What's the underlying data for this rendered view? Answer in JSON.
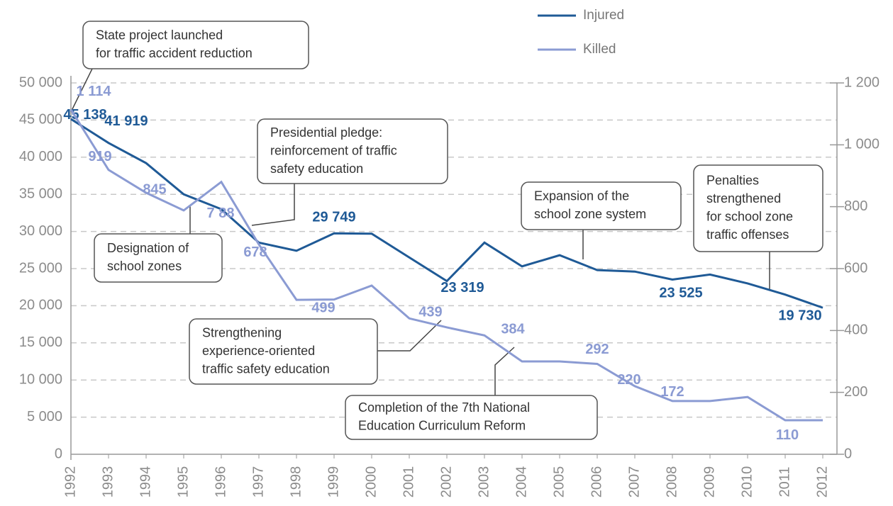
{
  "chart_data": {
    "type": "line",
    "x": [
      "1992",
      "1993",
      "1994",
      "1995",
      "1996",
      "1997",
      "1998",
      "1999",
      "2000",
      "2001",
      "2002",
      "2003",
      "2004",
      "2005",
      "2006",
      "2007",
      "2008",
      "2009",
      "2010",
      "2011",
      "2012"
    ],
    "series": [
      {
        "name": "Injured",
        "color": "#1f5a96",
        "axis": "y",
        "values": [
          45138,
          41919,
          39200,
          35000,
          33000,
          28500,
          27400,
          29749,
          29700,
          26500,
          23319,
          28500,
          25300,
          26800,
          24800,
          24600,
          23525,
          24200,
          23000,
          21500,
          19730
        ],
        "value_labels": [
          "45 138",
          "41 919",
          null,
          null,
          null,
          null,
          null,
          "29 749",
          null,
          null,
          "23 319",
          null,
          null,
          null,
          null,
          null,
          "23 525",
          null,
          null,
          null,
          "19 730"
        ]
      },
      {
        "name": "Killed",
        "color": "#8b9bd3",
        "axis": "y2",
        "values": [
          1114,
          919,
          845,
          788,
          880,
          678,
          499,
          500,
          545,
          439,
          410,
          384,
          300,
          300,
          292,
          220,
          172,
          172,
          185,
          110,
          110
        ],
        "value_labels": [
          "1 114",
          "919",
          "845",
          "7 88",
          null,
          "678",
          "499",
          null,
          null,
          "439",
          null,
          "384",
          null,
          null,
          "292",
          "220",
          "172",
          null,
          null,
          "110",
          null
        ]
      }
    ],
    "ylim": [
      0,
      50000
    ],
    "yticks": [
      0,
      {
        "value": 5000,
        "label": "5 000"
      },
      {
        "value": 10000,
        "label": "10 000"
      },
      {
        "value": 15000,
        "label": "15 000"
      },
      {
        "value": 20000,
        "label": "20 000"
      },
      {
        "value": 25000,
        "label": "25 000"
      },
      {
        "value": 30000,
        "label": "30 000"
      },
      {
        "value": 35000,
        "label": "35 000"
      },
      {
        "value": 40000,
        "label": "40 000"
      },
      {
        "value": 45000,
        "label": "45 000"
      },
      {
        "value": 50000,
        "label": "50 000"
      }
    ],
    "y2lim": [
      0,
      1200
    ],
    "y2ticks": [
      0,
      200,
      400,
      600,
      800,
      {
        "value": 1000,
        "label": "1 000"
      },
      {
        "value": 1200,
        "label": "1 200"
      }
    ],
    "grid": true,
    "legend": "top",
    "annotations": [
      {
        "lines": [
          "State project launched",
          "for traffic accident reduction"
        ]
      },
      {
        "lines": [
          "Presidential pledge:",
          "reinforcement of traffic",
          "safety education"
        ]
      },
      {
        "lines": [
          "Designation of",
          "school zones"
        ]
      },
      {
        "lines": [
          "Expansion of the",
          "school zone system"
        ]
      },
      {
        "lines": [
          "Penalties",
          "strengthened",
          "for school zone",
          "traffic offenses"
        ]
      },
      {
        "lines": [
          "Strengthening",
          "experience-oriented",
          "traffic safety education"
        ]
      },
      {
        "lines": [
          "Completion of the 7th National",
          "Education Curriculum Reform"
        ]
      }
    ]
  }
}
